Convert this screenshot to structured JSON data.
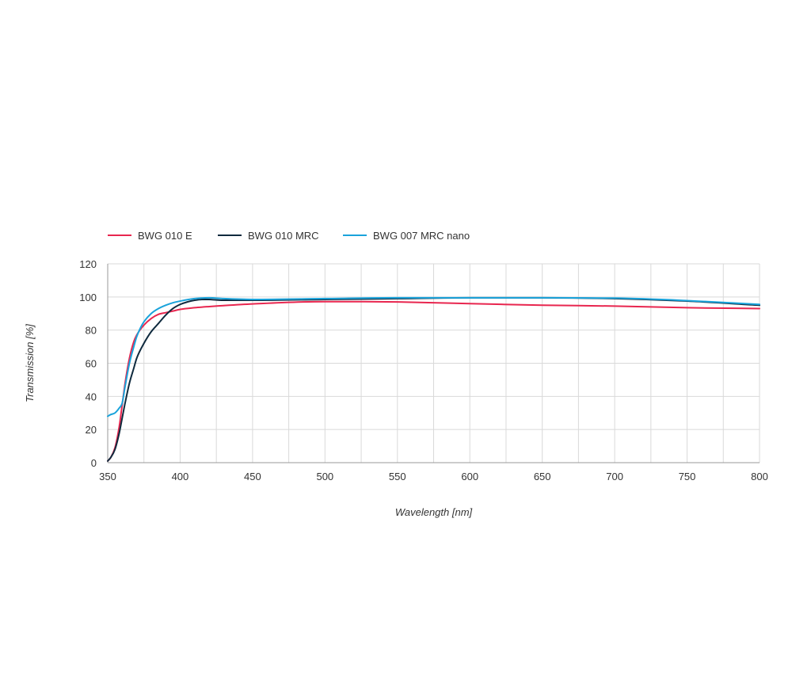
{
  "chart_data": {
    "type": "line",
    "title": "",
    "xlabel": "Wavelength [nm]",
    "ylabel": "Transmission [%]",
    "xlim": [
      350,
      800
    ],
    "ylim": [
      0,
      120
    ],
    "x_ticks": [
      350,
      400,
      450,
      500,
      550,
      600,
      650,
      700,
      750,
      800
    ],
    "y_ticks": [
      0,
      20,
      40,
      60,
      80,
      100,
      120
    ],
    "x_grid_step": 25,
    "grid": true,
    "legend_position": "top-left",
    "series": [
      {
        "name": "BWG 010 E",
        "color": "#e8264f",
        "x": [
          350,
          352,
          355,
          358,
          360,
          362,
          365,
          368,
          370,
          375,
          380,
          385,
          390,
          395,
          400,
          410,
          420,
          430,
          450,
          500,
          550,
          600,
          650,
          700,
          750,
          800
        ],
        "y": [
          1,
          3,
          9,
          22,
          35,
          48,
          63,
          73,
          77,
          83,
          87,
          89.5,
          90.5,
          91.5,
          92.5,
          93.5,
          94.2,
          94.8,
          95.8,
          97.2,
          97,
          96,
          95,
          94.5,
          93.5,
          93
        ]
      },
      {
        "name": "BWG 010 MRC",
        "color": "#0f2a3e",
        "x": [
          350,
          352,
          355,
          358,
          360,
          362,
          365,
          368,
          370,
          375,
          380,
          385,
          390,
          395,
          400,
          405,
          410,
          415,
          420,
          425,
          430,
          450,
          500,
          550,
          600,
          650,
          700,
          750,
          800
        ],
        "y": [
          1,
          3,
          8,
          18,
          27,
          36,
          48,
          57,
          63,
          72,
          79,
          84,
          89,
          93,
          95.5,
          97,
          98,
          98.5,
          98.5,
          98.2,
          98,
          98,
          98.5,
          99,
          99.5,
          99.5,
          99,
          97.5,
          95
        ]
      },
      {
        "name": "BWG 007 MRC nano",
        "color": "#1aa3db",
        "x": [
          350,
          352,
          355,
          358,
          360,
          362,
          365,
          368,
          370,
          373,
          375,
          380,
          385,
          390,
          395,
          400,
          410,
          420,
          430,
          450,
          500,
          550,
          600,
          650,
          700,
          750,
          800
        ],
        "y": [
          28,
          29,
          30,
          33,
          36,
          46,
          60,
          70,
          76,
          82,
          85,
          90,
          93,
          95,
          96.5,
          97.5,
          99,
          99.5,
          99,
          98.5,
          99,
          99.5,
          99.5,
          99.5,
          99.3,
          97.8,
          95.5
        ]
      }
    ]
  }
}
